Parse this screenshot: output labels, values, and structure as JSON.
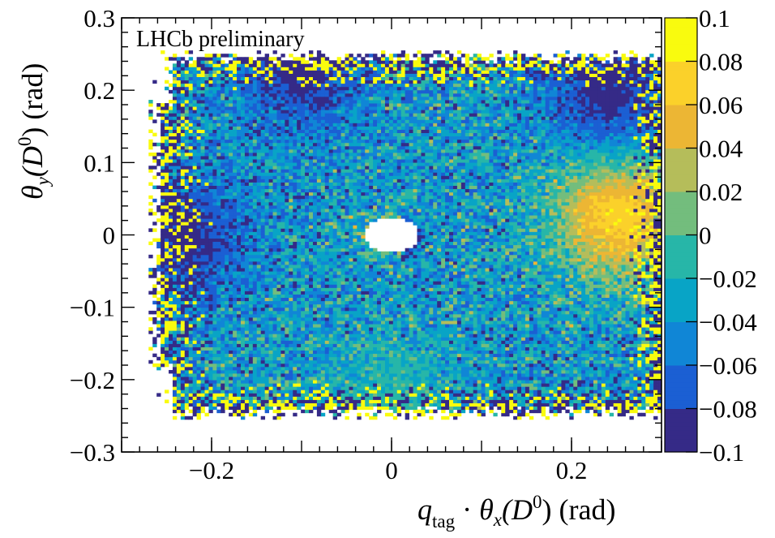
{
  "chart_data": {
    "type": "heatmap",
    "title": "",
    "annotation": "LHCb preliminary",
    "xlabel": {
      "var": "q",
      "var_sub": "tag",
      "sep": " · ",
      "theta": "θ",
      "theta_sub": "x",
      "arg_open": "(D",
      "arg_sup": "0",
      "arg_close": ") (rad)"
    },
    "ylabel": {
      "theta": "θ",
      "theta_sub": "y",
      "arg_open": "(D",
      "arg_sup": "0",
      "arg_close": ") (rad)"
    },
    "xlim": [
      -0.3,
      0.3
    ],
    "ylim": [
      -0.3,
      0.3
    ],
    "x_ticks": [
      -0.2,
      0,
      0.2
    ],
    "x_tick_labels": [
      "−0.2",
      "0",
      "0.2"
    ],
    "y_ticks": [
      -0.3,
      -0.2,
      -0.1,
      0,
      0.1,
      0.2,
      0.3
    ],
    "y_tick_labels": [
      "−0.3",
      "−0.2",
      "−0.1",
      "0",
      "0.1",
      "0.2",
      "0.3"
    ],
    "colorbar": {
      "range": [
        -0.1,
        0.1
      ],
      "ticks": [
        -0.1,
        -0.08,
        -0.06,
        -0.04,
        -0.02,
        0,
        0.02,
        0.04,
        0.06,
        0.08,
        0.1
      ],
      "tick_labels": [
        "−0.1",
        "−0.08",
        "−0.06",
        "−0.04",
        "−0.02",
        "0",
        "0.02",
        "0.04",
        "0.06",
        "0.08",
        "0.1"
      ],
      "colormap": [
        "#352a87",
        "#1b5fd3",
        "#1086d6",
        "#08a4c6",
        "#27b6a8",
        "#73bd7d",
        "#b5bd5a",
        "#ecb634",
        "#fbd12a",
        "#f9fb0e"
      ]
    },
    "grid": false,
    "data_region": {
      "x_range": [
        -0.27,
        0.3
      ],
      "y_range": [
        -0.255,
        0.255
      ],
      "empty_hole_center": [
        0.0,
        0.0
      ],
      "empty_hole_radius": 0.025
    },
    "features": [
      {
        "description": "high (yellow) region",
        "x": 0.25,
        "y": 0.03,
        "value": 0.1
      },
      {
        "description": "low (dark blue) region",
        "x": -0.23,
        "y": 0.0,
        "value": -0.1
      },
      {
        "description": "low (dark blue) region",
        "x": -0.1,
        "y": 0.23,
        "value": -0.1
      },
      {
        "description": "low (dark blue) region",
        "x": 0.24,
        "y": 0.2,
        "value": -0.1
      },
      {
        "description": "mixed fringe",
        "x": 0.0,
        "y": -0.24,
        "value": 0.0
      }
    ]
  }
}
